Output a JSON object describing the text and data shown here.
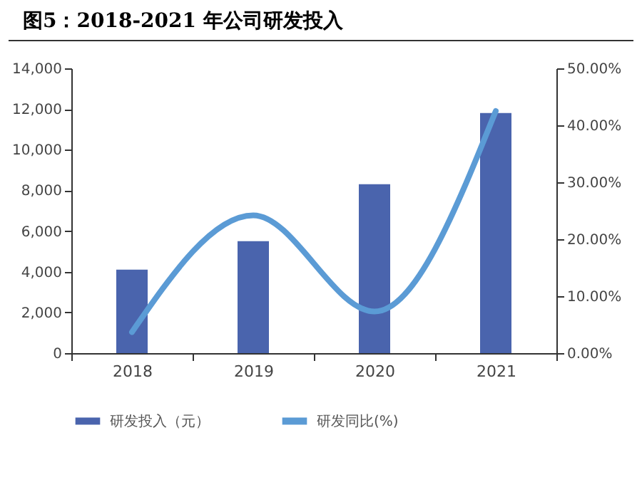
{
  "chart_data": {
    "type": "bar",
    "title": "图5：2018-2021 年公司研发投入",
    "categories": [
      "2018",
      "2019",
      "2020",
      "2021"
    ],
    "series": [
      {
        "name": "研发投入（元）",
        "color": "#4a64ad",
        "values": [
          4100,
          5500,
          8300,
          11800
        ]
      },
      {
        "name": "研发同比(%)",
        "type": "line",
        "axis": "y2",
        "color": "#5b9bd5",
        "values": [
          3.7,
          24.2,
          7.3,
          42.5
        ]
      }
    ],
    "ylim": [
      0,
      14000
    ],
    "yticks": [
      {
        "value": 0,
        "label": "0"
      },
      {
        "value": 2000,
        "label": "2,000"
      },
      {
        "value": 4000,
        "label": "4,000"
      },
      {
        "value": 6000,
        "label": "6,000"
      },
      {
        "value": 8000,
        "label": "8,000"
      },
      {
        "value": 10000,
        "label": "10,000"
      },
      {
        "value": 12000,
        "label": "12,000"
      },
      {
        "value": 14000,
        "label": "14,000"
      }
    ],
    "y2lim": [
      0,
      50
    ],
    "y2ticks": [
      {
        "value": 0,
        "label": "0.00%"
      },
      {
        "value": 10,
        "label": "10.00%"
      },
      {
        "value": 20,
        "label": "20.00%"
      },
      {
        "value": 30,
        "label": "30.00%"
      },
      {
        "value": 40,
        "label": "40.00%"
      },
      {
        "value": 50,
        "label": "50.00%"
      }
    ],
    "grid": false,
    "legend": "bottom",
    "marker": "none"
  }
}
